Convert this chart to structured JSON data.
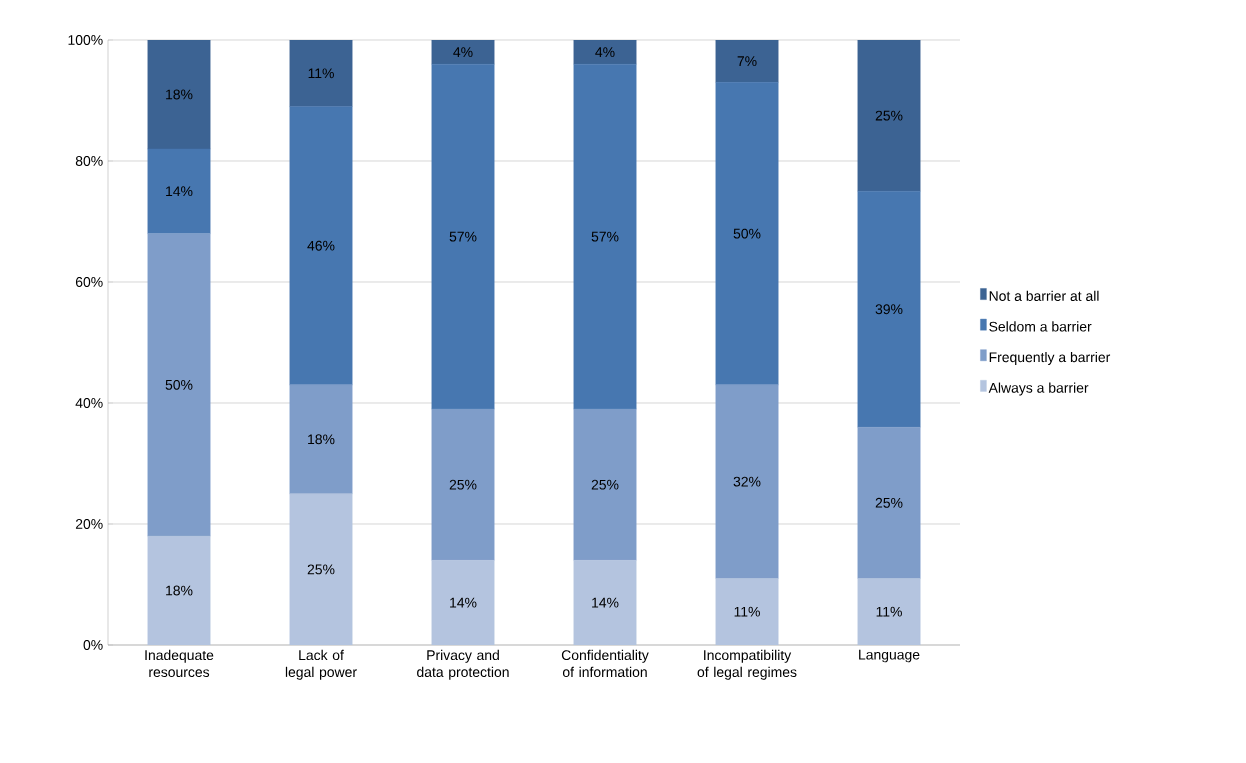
{
  "chart_data": {
    "type": "bar",
    "stacked": true,
    "categories": [
      "Inadequate resources",
      "Lack of legal power",
      "Privacy and data protection",
      "Confidentiality of information",
      "Incompatibility of legal regimes",
      "Language"
    ],
    "series": [
      {
        "name": "Always a barrier",
        "color": "#b4c4df",
        "values": [
          18,
          25,
          14,
          14,
          11,
          11
        ],
        "value_labels": [
          "18%",
          "25%",
          "14%",
          "14%",
          "11%",
          "11%"
        ]
      },
      {
        "name": "Frequently a barrier",
        "color": "#7f9dc9",
        "values": [
          50,
          18,
          25,
          25,
          32,
          25
        ],
        "value_labels": [
          "50%",
          "18%",
          "25%",
          "25%",
          "32%",
          "25%"
        ]
      },
      {
        "name": "Seldom a barrier",
        "color": "#4777b0",
        "values": [
          14,
          46,
          57,
          57,
          50,
          39
        ],
        "value_labels": [
          "14%",
          "46%",
          "57%",
          "57%",
          "50%",
          "39%"
        ]
      },
      {
        "name": "Not a barrier at all",
        "color": "#3c6393",
        "values": [
          18,
          11,
          4,
          4,
          7,
          25
        ],
        "value_labels": [
          "18%",
          "11%",
          "4%",
          "4%",
          "7%",
          "25%"
        ]
      }
    ],
    "ylim": [
      0,
      100
    ],
    "yticks": [
      {
        "value": 0,
        "label": "0%"
      },
      {
        "value": 20,
        "label": "20%"
      },
      {
        "value": 40,
        "label": "40%"
      },
      {
        "value": 60,
        "label": "60%"
      },
      {
        "value": 80,
        "label": "80%"
      },
      {
        "value": 100,
        "label": "100%"
      }
    ],
    "grid": "y",
    "legend": "right"
  }
}
